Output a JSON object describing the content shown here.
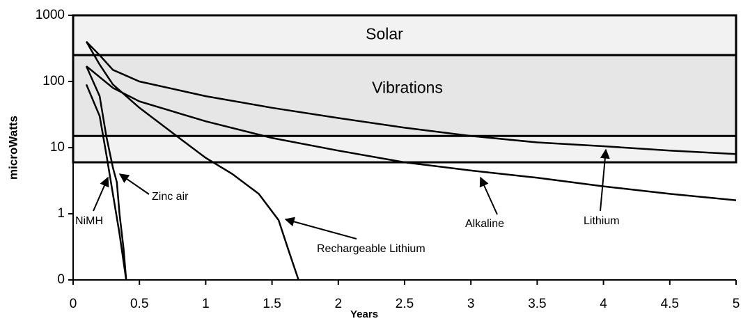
{
  "chart_data": {
    "type": "line",
    "x_label": "Years",
    "y_label": "microWatts",
    "xlim": [
      0,
      5
    ],
    "xticks": [
      0,
      0.5,
      1,
      1.5,
      2,
      2.5,
      3,
      3.5,
      4,
      4.5,
      5
    ],
    "ylim": [
      0.1,
      1000
    ],
    "log_scale_y": true,
    "yticks": [
      {
        "value": 0.1,
        "label": "0"
      },
      1,
      10,
      100,
      1000
    ],
    "regions": [
      {
        "range": [
          6,
          1000
        ],
        "color": "#f2f2f2"
      },
      {
        "name": "Solar",
        "range": [
          250,
          1000
        ],
        "color": "#f2f2f2"
      },
      {
        "name": "Vibrations",
        "range": [
          15,
          250
        ],
        "color": "#e6e6e6"
      }
    ],
    "series": [
      {
        "name": "Lithium",
        "color": "#000000",
        "x": [
          0.1,
          0.2,
          0.3,
          0.5,
          1,
          1.5,
          2,
          2.5,
          3,
          3.5,
          4,
          4.5,
          5
        ],
        "values": [
          400,
          250,
          150,
          100,
          60,
          40,
          28,
          20,
          15,
          12,
          10.5,
          9,
          8
        ]
      },
      {
        "name": "Alkaline",
        "color": "#000000",
        "x": [
          0.1,
          0.3,
          0.5,
          1,
          1.5,
          2,
          2.5,
          3,
          3.5,
          4,
          4.5,
          5
        ],
        "values": [
          170,
          80,
          50,
          25,
          14,
          9,
          6,
          4.5,
          3.5,
          2.6,
          2,
          1.6
        ]
      },
      {
        "name": "Rechargeable Lithium",
        "color": "#000000",
        "x": [
          0.1,
          0.2,
          0.3,
          0.5,
          0.8,
          1,
          1.2,
          1.4,
          1.55,
          1.62,
          1.7
        ],
        "values": [
          400,
          180,
          90,
          40,
          14,
          7,
          4,
          2,
          0.8,
          0.3,
          0.1
        ]
      },
      {
        "name": "NiMH",
        "color": "#000000",
        "x": [
          0.1,
          0.2,
          0.25,
          0.3,
          0.35,
          0.4
        ],
        "values": [
          90,
          30,
          8,
          2,
          0.5,
          0.1
        ]
      },
      {
        "name": "Zinc air",
        "color": "#000000",
        "x": [
          0.1,
          0.2,
          0.25,
          0.3,
          0.33,
          0.35,
          0.38,
          0.4
        ],
        "values": [
          170,
          60,
          15,
          5,
          3,
          1,
          0.3,
          0.1
        ]
      }
    ]
  }
}
